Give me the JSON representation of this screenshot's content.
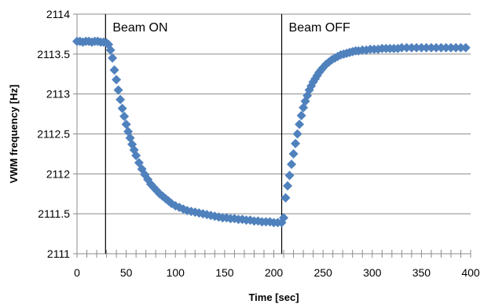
{
  "chart_data": {
    "type": "scatter",
    "title": "",
    "xlabel": "Time [sec]",
    "ylabel": "VWM frequency [Hz]",
    "xlim": [
      0,
      400
    ],
    "ylim": [
      2111,
      2114
    ],
    "x_ticks": [
      0,
      50,
      100,
      150,
      200,
      250,
      300,
      350,
      400
    ],
    "y_ticks": [
      2111,
      2111.5,
      2112,
      2112.5,
      2113,
      2113.5,
      2114
    ],
    "x_tick_labels": [
      "0",
      "50",
      "100",
      "150",
      "200",
      "250",
      "300",
      "350",
      "400"
    ],
    "y_tick_labels": [
      "2111",
      "2111.5",
      "2112",
      "2112.5",
      "2113",
      "2113.5",
      "2114"
    ],
    "grid": {
      "horizontal": true,
      "vertical": false
    },
    "legend": "none",
    "marker": "diamond",
    "series_color": "#4F81BD",
    "annotations": [
      {
        "text": "Beam ON",
        "x": 29
      },
      {
        "text": "Beam OFF",
        "x": 208
      }
    ],
    "series": [
      {
        "x": [
          0,
          3,
          6,
          9,
          12,
          15,
          18,
          21,
          24,
          27,
          30,
          32,
          34,
          36,
          38,
          40,
          42,
          44,
          46,
          48,
          50,
          52,
          54,
          56,
          58,
          60,
          63,
          66,
          69,
          72,
          75,
          78,
          81,
          84,
          87,
          90,
          93,
          96,
          100,
          104,
          108,
          112,
          116,
          120,
          124,
          128,
          132,
          136,
          140,
          144,
          148,
          152,
          156,
          160,
          164,
          168,
          172,
          176,
          180,
          184,
          188,
          192,
          196,
          200,
          204,
          208,
          210,
          212,
          214,
          216,
          218,
          220,
          222,
          224,
          226,
          228,
          230,
          232,
          234,
          236,
          238,
          240,
          242,
          244,
          246,
          248,
          250,
          253,
          256,
          259,
          262,
          265,
          268,
          271,
          274,
          277,
          280,
          283,
          286,
          290,
          294,
          298,
          302,
          306,
          310,
          314,
          318,
          322,
          326,
          330,
          335,
          340,
          345,
          350,
          355,
          360,
          365,
          370,
          375,
          380,
          385,
          390,
          395
        ],
        "y": [
          2113.66,
          2113.66,
          2113.65,
          2113.66,
          2113.66,
          2113.65,
          2113.66,
          2113.66,
          2113.65,
          2113.65,
          2113.64,
          2113.62,
          2113.55,
          2113.45,
          2113.3,
          2113.18,
          2113.05,
          2112.93,
          2112.82,
          2112.72,
          2112.62,
          2112.53,
          2112.45,
          2112.37,
          2112.3,
          2112.23,
          2112.14,
          2112.06,
          2111.99,
          2111.93,
          2111.87,
          2111.83,
          2111.79,
          2111.75,
          2111.72,
          2111.69,
          2111.66,
          2111.63,
          2111.6,
          2111.58,
          2111.56,
          2111.54,
          2111.53,
          2111.52,
          2111.51,
          2111.5,
          2111.49,
          2111.48,
          2111.47,
          2111.46,
          2111.45,
          2111.45,
          2111.44,
          2111.44,
          2111.43,
          2111.43,
          2111.42,
          2111.42,
          2111.41,
          2111.41,
          2111.4,
          2111.4,
          2111.4,
          2111.39,
          2111.39,
          2111.39,
          2111.45,
          2111.7,
          2111.85,
          2111.98,
          2112.12,
          2112.25,
          2112.38,
          2112.5,
          2112.62,
          2112.73,
          2112.83,
          2112.91,
          2112.98,
          2113.05,
          2113.1,
          2113.15,
          2113.19,
          2113.23,
          2113.27,
          2113.3,
          2113.33,
          2113.37,
          2113.4,
          2113.43,
          2113.45,
          2113.47,
          2113.49,
          2113.5,
          2113.51,
          2113.52,
          2113.53,
          2113.54,
          2113.54,
          2113.55,
          2113.55,
          2113.56,
          2113.56,
          2113.56,
          2113.57,
          2113.57,
          2113.57,
          2113.57,
          2113.57,
          2113.58,
          2113.58,
          2113.58,
          2113.58,
          2113.58,
          2113.58,
          2113.58,
          2113.58,
          2113.58,
          2113.58,
          2113.58,
          2113.58,
          2113.58,
          2113.58
        ]
      }
    ]
  }
}
